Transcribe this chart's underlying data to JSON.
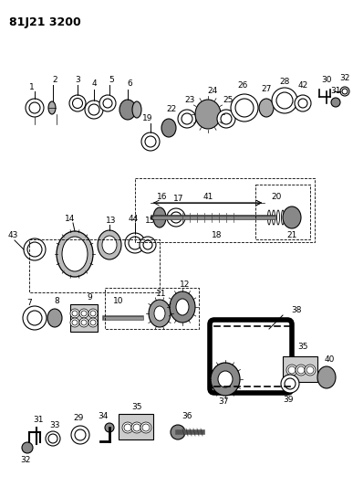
{
  "title": "81J21 3200",
  "bg_color": "#ffffff",
  "line_color": "#000000",
  "title_fontsize": 9,
  "label_fontsize": 6.5,
  "figsize": [
    3.87,
    5.33
  ],
  "dpi": 100
}
